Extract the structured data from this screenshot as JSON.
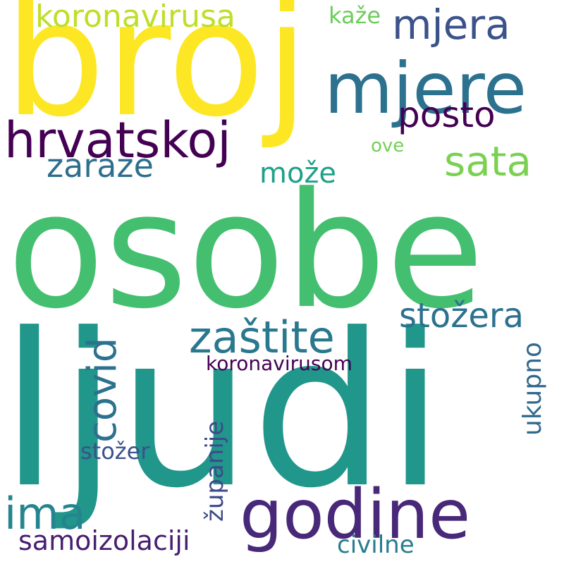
{
  "words": [
    {
      "text": "osobe",
      "color": "#44bf70",
      "rotated": false
    },
    {
      "text": "ljudi",
      "color": "#21968b",
      "rotated": false
    },
    {
      "text": "broj",
      "color": "#fde725",
      "rotated": false
    },
    {
      "text": "mjere",
      "color": "#2c718e",
      "rotated": false
    },
    {
      "text": "godine",
      "color": "#482878",
      "rotated": false
    },
    {
      "text": "hrvatskoj",
      "color": "#440154",
      "rotated": false
    },
    {
      "text": "mjera",
      "color": "#3b528b",
      "rotated": false
    },
    {
      "text": "koronavirusa",
      "color": "#bddf26",
      "rotated": false
    },
    {
      "text": "sata",
      "color": "#7ad151",
      "rotated": false
    },
    {
      "text": "zaštite",
      "color": "#2a788e",
      "rotated": false
    },
    {
      "text": "covid",
      "color": "#2c728e",
      "rotated": true
    },
    {
      "text": "posto",
      "color": "#440154",
      "rotated": false
    },
    {
      "text": "zaraze",
      "color": "#2e6f8e",
      "rotated": false
    },
    {
      "text": "ima",
      "color": "#25858e",
      "rotated": false
    },
    {
      "text": "stožera",
      "color": "#2c718e",
      "rotated": false
    },
    {
      "text": "može",
      "color": "#1fa088",
      "rotated": false
    },
    {
      "text": "samoizolaciji",
      "color": "#481f70",
      "rotated": false
    },
    {
      "text": "koronavirusom",
      "color": "#440154",
      "rotated": false
    },
    {
      "text": "ukupno",
      "color": "#31688e",
      "rotated": true
    },
    {
      "text": "županije",
      "color": "#3e4a89",
      "rotated": true
    },
    {
      "text": "kaže",
      "color": "#6ccd5a",
      "rotated": false
    },
    {
      "text": "civilne",
      "color": "#287c8e",
      "rotated": false
    },
    {
      "text": "stožer",
      "color": "#3b528b",
      "rotated": false
    },
    {
      "text": "ove",
      "color": "#73d056",
      "rotated": false
    }
  ]
}
